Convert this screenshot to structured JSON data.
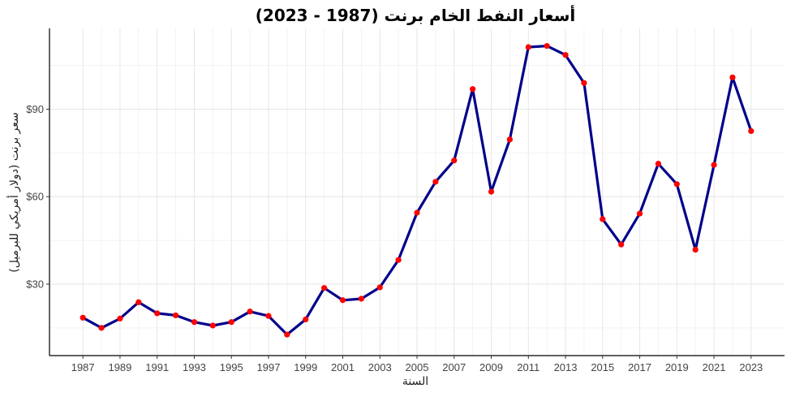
{
  "chart_data": {
    "type": "line",
    "title": "أسعار النفط الخام برنت (1987 - 2023)",
    "xlabel": "السنة",
    "ylabel": "سعر برنت (دولار أمريكي للبرميل)",
    "x": [
      1987,
      1988,
      1989,
      1990,
      1991,
      1992,
      1993,
      1994,
      1995,
      1996,
      1997,
      1998,
      1999,
      2000,
      2001,
      2002,
      2003,
      2004,
      2005,
      2006,
      2007,
      2008,
      2009,
      2010,
      2011,
      2012,
      2013,
      2014,
      2015,
      2016,
      2017,
      2018,
      2019,
      2020,
      2021,
      2022,
      2023
    ],
    "series": [
      {
        "values": [
          18.5,
          15.0,
          18.2,
          23.8,
          20.0,
          19.3,
          17.0,
          15.8,
          17.0,
          20.6,
          19.1,
          12.7,
          17.9,
          28.7,
          24.5,
          25.0,
          28.9,
          38.3,
          54.5,
          65.1,
          72.4,
          96.9,
          61.7,
          79.6,
          111.3,
          111.7,
          108.6,
          99.0,
          52.3,
          43.6,
          54.2,
          71.3,
          64.3,
          41.8,
          70.9,
          100.9,
          82.5
        ]
      }
    ],
    "xticks": [
      "1987",
      "1989",
      "1991",
      "1993",
      "1995",
      "1997",
      "1999",
      "2001",
      "2003",
      "2005",
      "2007",
      "2009",
      "2011",
      "2013",
      "2015",
      "2017",
      "2019",
      "2021",
      "2023"
    ],
    "yticks": [
      "$30",
      "$60",
      "$90"
    ],
    "xlim": [
      1985.2,
      2024.8
    ],
    "ylim": [
      5.5,
      117.7
    ],
    "grid": true,
    "line_color": "#00008B",
    "point_color": "#FF0000"
  }
}
